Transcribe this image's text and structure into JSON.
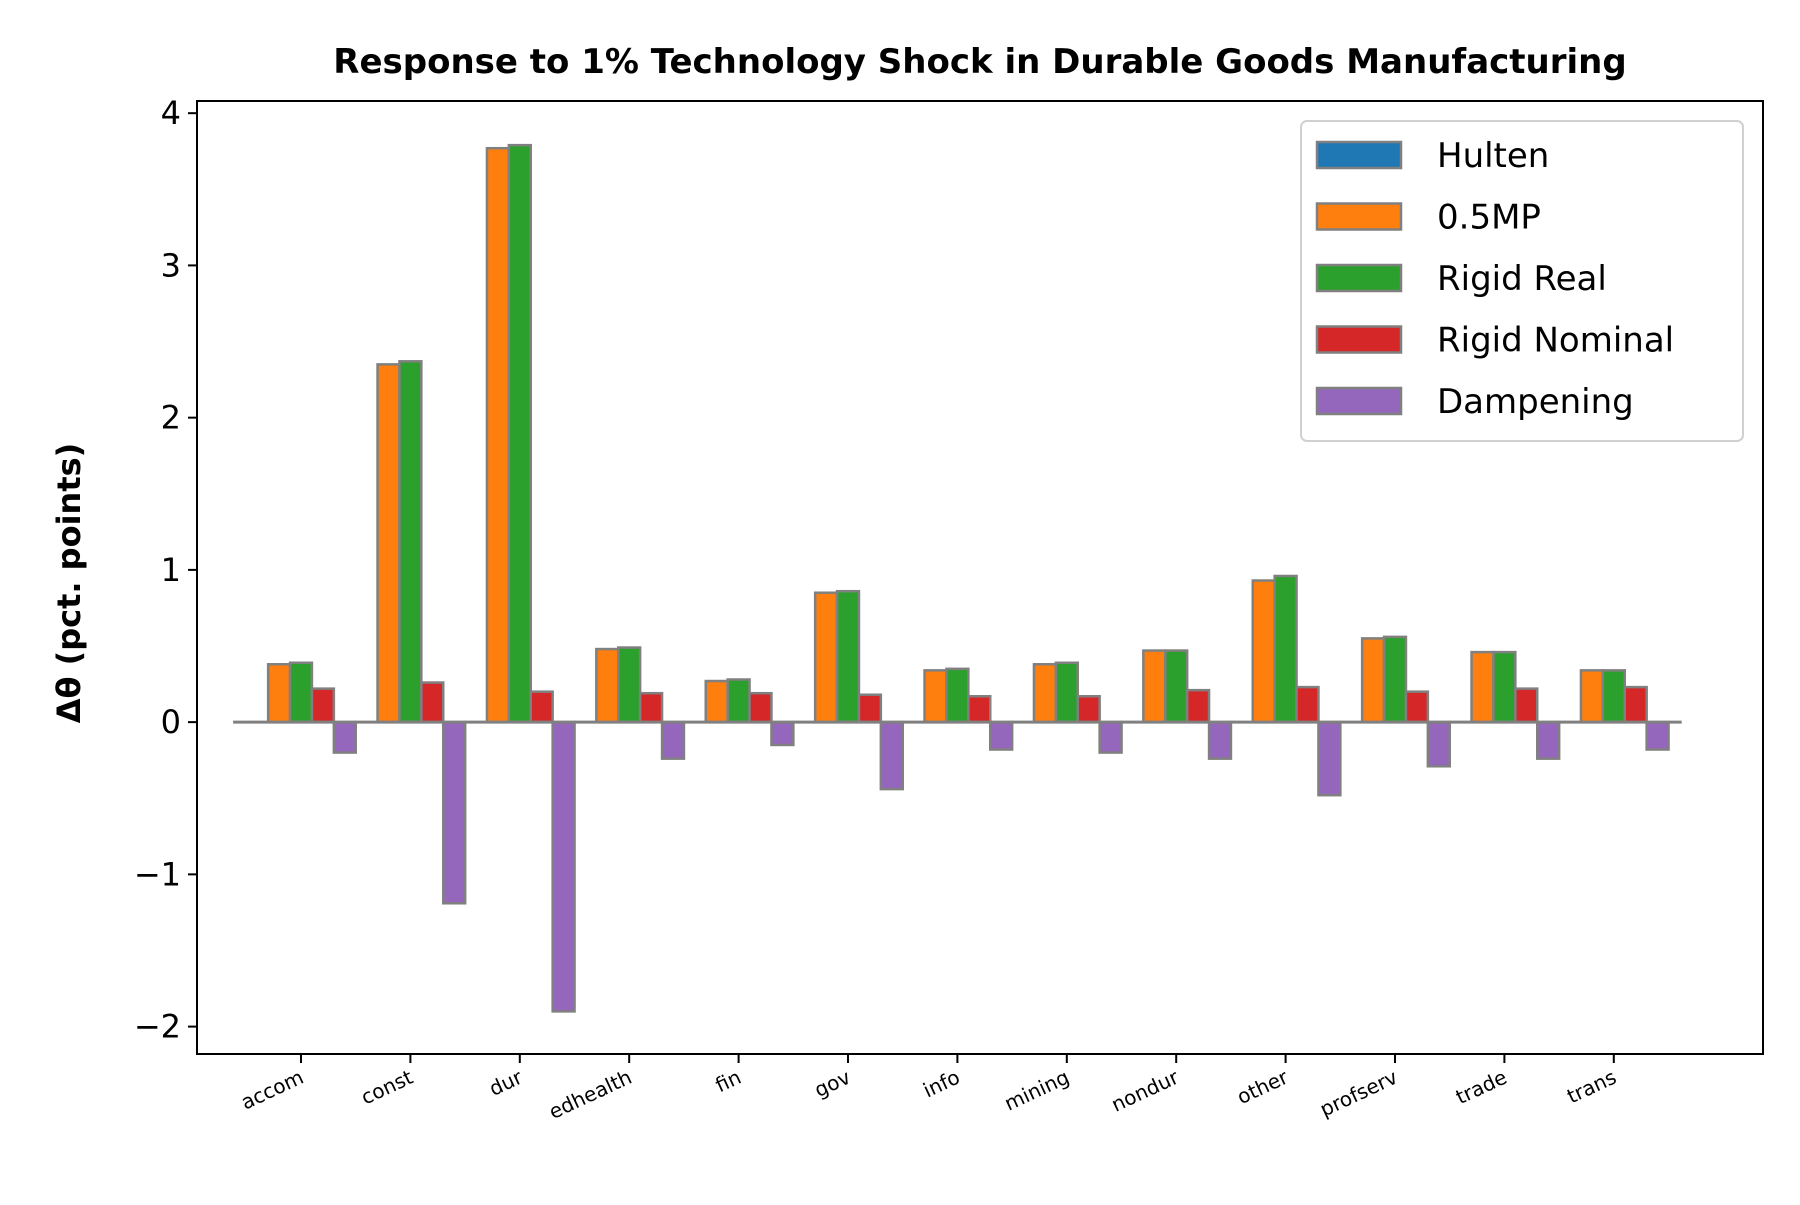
{
  "chart_data": {
    "type": "bar",
    "title": "Response to 1% Technology Shock in Durable Goods Manufacturing",
    "xlabel": "",
    "ylabel": "Δθ  (pct. points)",
    "ylim": [
      -2.18,
      4.08
    ],
    "yticks": [
      -2,
      -1,
      0,
      1,
      2,
      3,
      4
    ],
    "ytick_labels": [
      "−2",
      "−1",
      "0",
      "1",
      "2",
      "3",
      "4"
    ],
    "grid": false,
    "legend_position": "top-right",
    "categories": [
      "accom",
      "const",
      "dur",
      "edhealth",
      "fin",
      "gov",
      "info",
      "mining",
      "nondur",
      "other",
      "profserv",
      "trade",
      "trans"
    ],
    "series": [
      {
        "name": "Hulten",
        "color": "#1f77b4",
        "values": [
          0,
          0,
          0,
          0,
          0,
          0,
          0,
          0,
          0,
          0,
          0,
          0,
          0
        ]
      },
      {
        "name": "0.5MP",
        "color": "#ff7f0e",
        "values": [
          0.38,
          2.35,
          3.77,
          0.48,
          0.27,
          0.85,
          0.34,
          0.38,
          0.47,
          0.93,
          0.55,
          0.46,
          0.34
        ]
      },
      {
        "name": "Rigid Real",
        "color": "#2ca02c",
        "values": [
          0.39,
          2.37,
          3.79,
          0.49,
          0.28,
          0.86,
          0.35,
          0.39,
          0.47,
          0.96,
          0.56,
          0.46,
          0.34
        ]
      },
      {
        "name": "Rigid Nominal",
        "color": "#d62728",
        "values": [
          0.22,
          0.26,
          0.2,
          0.19,
          0.19,
          0.18,
          0.17,
          0.17,
          0.21,
          0.23,
          0.2,
          0.22,
          0.23
        ]
      },
      {
        "name": "Dampening",
        "color": "#9467bd",
        "values": [
          -0.2,
          -1.19,
          -1.9,
          -0.24,
          -0.15,
          -0.44,
          -0.18,
          -0.2,
          -0.24,
          -0.48,
          -0.29,
          -0.24,
          -0.18
        ]
      }
    ],
    "edge_color": "#808080"
  }
}
